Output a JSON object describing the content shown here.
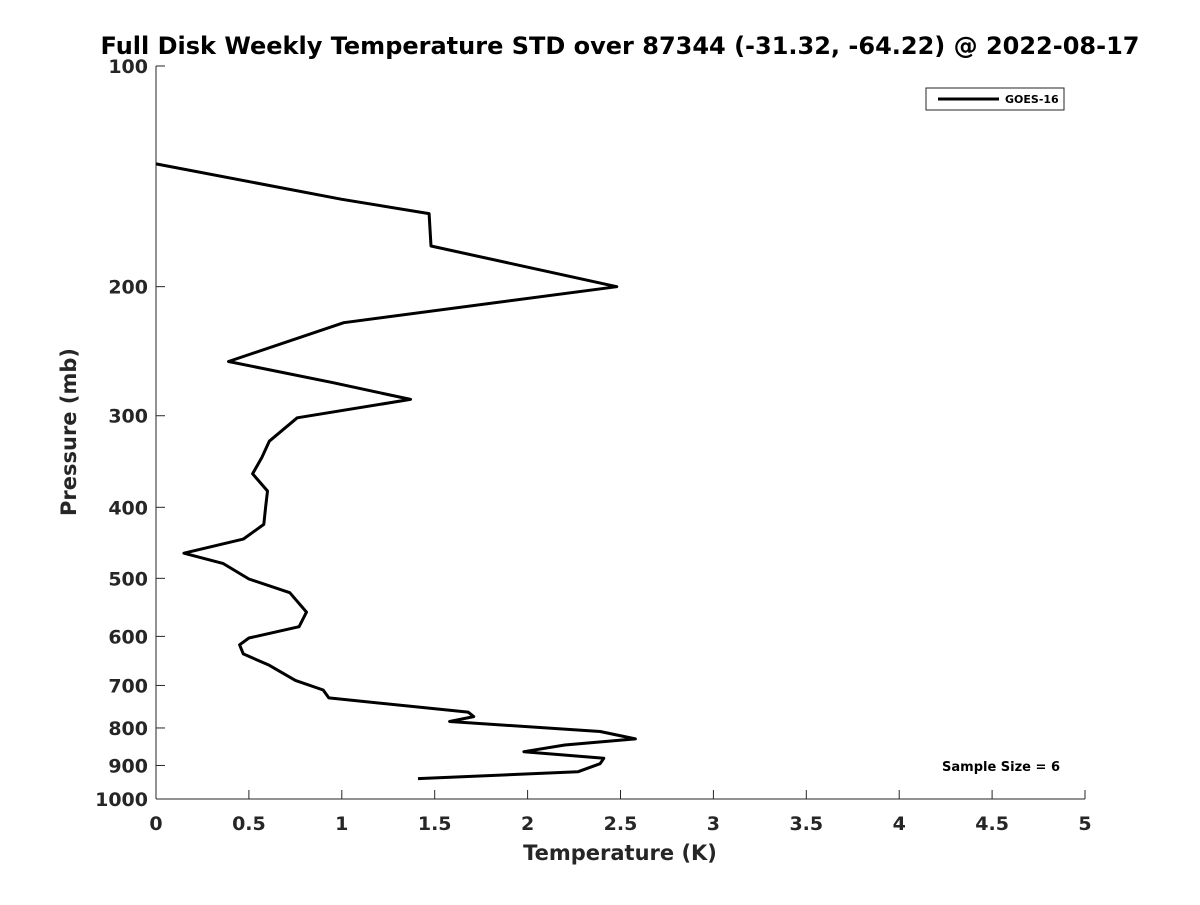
{
  "chart_data": {
    "type": "line",
    "title": "Full Disk Weekly Temperature STD over 87344 (-31.32, -64.22) @ 2022-08-17",
    "xlabel": "Temperature (K)",
    "ylabel": "Pressure (mb)",
    "xlim": [
      0,
      5
    ],
    "ylim": [
      100,
      1000
    ],
    "y_scale": "log",
    "y_reversed": true,
    "grid": false,
    "legend_placement": "top-right",
    "x_ticks": [
      "0",
      "0.5",
      "1",
      "1.5",
      "2",
      "2.5",
      "3",
      "3.5",
      "4",
      "4.5",
      "5"
    ],
    "y_ticks": [
      "100",
      "200",
      "300",
      "400",
      "500",
      "600",
      "700",
      "800",
      "900",
      "1000"
    ],
    "annotation": "Sample Size = 6",
    "line_color": "#000000",
    "series": [
      {
        "name": "GOES-16",
        "x": [
          0.0,
          1.0,
          1.47,
          1.48,
          2.48,
          1.01,
          0.39,
          0.94,
          1.37,
          0.76,
          0.61,
          0.57,
          0.52,
          0.6,
          0.59,
          0.58,
          0.47,
          0.15,
          0.36,
          0.5,
          0.72,
          0.81,
          0.77,
          0.5,
          0.45,
          0.47,
          0.61,
          0.75,
          0.9,
          0.93,
          1.68,
          1.71,
          1.58,
          2.39,
          2.58,
          2.2,
          1.98,
          2.41,
          2.39,
          2.27,
          1.41
        ],
        "y": [
          136,
          152,
          159,
          176,
          200,
          224,
          253,
          270,
          285,
          302,
          325,
          342,
          360,
          380,
          400,
          422,
          442,
          462,
          477,
          501,
          523,
          556,
          582,
          603,
          616,
          634,
          657,
          689,
          710,
          728,
          761,
          772,
          784,
          809,
          828,
          844,
          862,
          880,
          895,
          918,
          938
        ]
      }
    ]
  }
}
